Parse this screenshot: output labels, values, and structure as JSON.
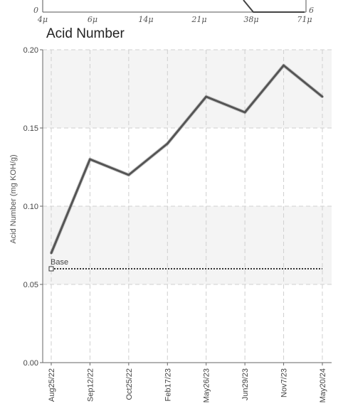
{
  "top_chart": {
    "y_bottom_label": "0",
    "y_right_label": "6",
    "x_ticks": [
      "4μ",
      "6μ",
      "14μ",
      "21μ",
      "38μ",
      "71μ"
    ]
  },
  "chart_data": {
    "type": "line",
    "title": "Acid Number",
    "xlabel": "",
    "ylabel": "Acid Number (mg KOH/g)",
    "categories": [
      "Aug25/22",
      "Sep12/22",
      "Oct25/22",
      "Feb17/23",
      "May26/23",
      "Jun29/23",
      "Nov7/23",
      "May20/24"
    ],
    "series": [
      {
        "values": [
          0.07,
          0.13,
          0.12,
          0.14,
          0.17,
          0.16,
          0.19,
          0.17
        ],
        "color": "#555555"
      }
    ],
    "baseline": {
      "label": "Base",
      "value": 0.06
    },
    "yticks": [
      "0.00",
      "0.05",
      "0.10",
      "0.15",
      "0.20"
    ],
    "ylim": [
      0,
      0.2
    ],
    "grid": true
  }
}
